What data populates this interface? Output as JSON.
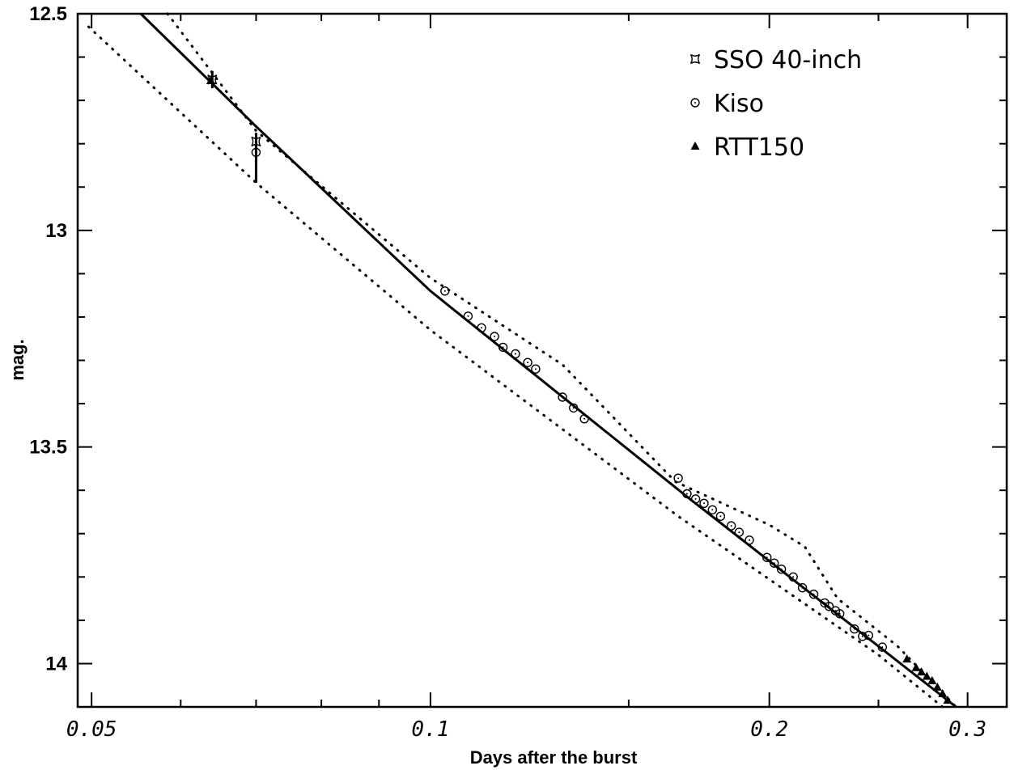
{
  "chart_data": {
    "type": "scatter",
    "title": "",
    "xlabel": "Days after the burst",
    "ylabel": "mag.",
    "xscale": "log",
    "xlim": [
      0.0486,
      0.325
    ],
    "ylim": [
      14.1,
      12.5
    ],
    "y_inverted": true,
    "x_tick_labels": [
      "0.05",
      "0.1",
      "0.2",
      "0.3"
    ],
    "x_ticks": [
      0.05,
      0.1,
      0.2,
      0.3
    ],
    "x_minor_ticks": [
      0.06,
      0.07,
      0.08,
      0.09,
      0.15,
      0.25
    ],
    "y_tick_labels": [
      "12.5",
      "13",
      "13.5",
      "14"
    ],
    "y_ticks": [
      12.5,
      13.0,
      13.5,
      14.0
    ],
    "y_minor_step": 0.1,
    "grid": false,
    "legend_position": "top-right",
    "series": [
      {
        "name": "SSO 40-inch",
        "marker": "square-star",
        "points": [
          {
            "x": 0.064,
            "y": 12.652,
            "yerr": 0.02
          },
          {
            "x": 0.07,
            "y": 12.795,
            "yerr": 0.02
          }
        ]
      },
      {
        "name": "Kiso",
        "marker": "circle",
        "points": [
          {
            "x": 0.07,
            "y": 12.82,
            "yerr_low": 0.07,
            "yerr_high": 0.025
          },
          {
            "x": 0.103,
            "y": 13.14
          },
          {
            "x": 0.108,
            "y": 13.198
          },
          {
            "x": 0.111,
            "y": 13.225
          },
          {
            "x": 0.114,
            "y": 13.245
          },
          {
            "x": 0.116,
            "y": 13.27
          },
          {
            "x": 0.119,
            "y": 13.285
          },
          {
            "x": 0.122,
            "y": 13.305
          },
          {
            "x": 0.124,
            "y": 13.32
          },
          {
            "x": 0.131,
            "y": 13.385
          },
          {
            "x": 0.134,
            "y": 13.41
          },
          {
            "x": 0.137,
            "y": 13.435
          },
          {
            "x": 0.166,
            "y": 13.572
          },
          {
            "x": 0.169,
            "y": 13.608
          },
          {
            "x": 0.172,
            "y": 13.62
          },
          {
            "x": 0.175,
            "y": 13.63
          },
          {
            "x": 0.178,
            "y": 13.645
          },
          {
            "x": 0.181,
            "y": 13.66
          },
          {
            "x": 0.185,
            "y": 13.682
          },
          {
            "x": 0.188,
            "y": 13.697
          },
          {
            "x": 0.192,
            "y": 13.715
          },
          {
            "x": 0.199,
            "y": 13.755
          },
          {
            "x": 0.202,
            "y": 13.768
          },
          {
            "x": 0.205,
            "y": 13.782
          },
          {
            "x": 0.21,
            "y": 13.8
          },
          {
            "x": 0.214,
            "y": 13.825
          },
          {
            "x": 0.219,
            "y": 13.84
          },
          {
            "x": 0.224,
            "y": 13.86
          },
          {
            "x": 0.226,
            "y": 13.868
          },
          {
            "x": 0.229,
            "y": 13.878
          },
          {
            "x": 0.231,
            "y": 13.885
          },
          {
            "x": 0.238,
            "y": 13.92
          },
          {
            "x": 0.242,
            "y": 13.937
          },
          {
            "x": 0.245,
            "y": 13.935
          },
          {
            "x": 0.252,
            "y": 13.962
          }
        ]
      },
      {
        "name": "RTT150",
        "marker": "triangle",
        "points": [
          {
            "x": 0.0638,
            "y": 12.655
          },
          {
            "x": 0.265,
            "y": 13.99
          },
          {
            "x": 0.27,
            "y": 14.01
          },
          {
            "x": 0.273,
            "y": 14.02
          },
          {
            "x": 0.276,
            "y": 14.03
          },
          {
            "x": 0.279,
            "y": 14.04
          },
          {
            "x": 0.282,
            "y": 14.055
          },
          {
            "x": 0.285,
            "y": 14.07
          },
          {
            "x": 0.288,
            "y": 14.085
          }
        ]
      }
    ],
    "model_curves": [
      {
        "style": "solid",
        "points": [
          [
            0.0553,
            12.5
          ],
          [
            0.07,
            12.76
          ],
          [
            0.1,
            13.14
          ],
          [
            0.17,
            13.62
          ],
          [
            0.293,
            14.1
          ]
        ]
      },
      {
        "style": "dotted",
        "points": [
          [
            0.0584,
            12.5
          ],
          [
            0.07,
            12.77
          ],
          [
            0.1,
            13.11
          ],
          [
            0.131,
            13.31
          ],
          [
            0.165,
            13.58
          ],
          [
            0.2,
            13.68
          ],
          [
            0.215,
            13.73
          ],
          [
            0.23,
            13.85
          ],
          [
            0.26,
            13.96
          ],
          [
            0.293,
            14.1
          ]
        ]
      },
      {
        "style": "dotted",
        "points": [
          [
            0.0497,
            12.53
          ],
          [
            0.07,
            12.89
          ],
          [
            0.1,
            13.23
          ],
          [
            0.166,
            13.66
          ],
          [
            0.22,
            13.88
          ],
          [
            0.25,
            13.98
          ],
          [
            0.285,
            14.1
          ]
        ]
      }
    ]
  }
}
